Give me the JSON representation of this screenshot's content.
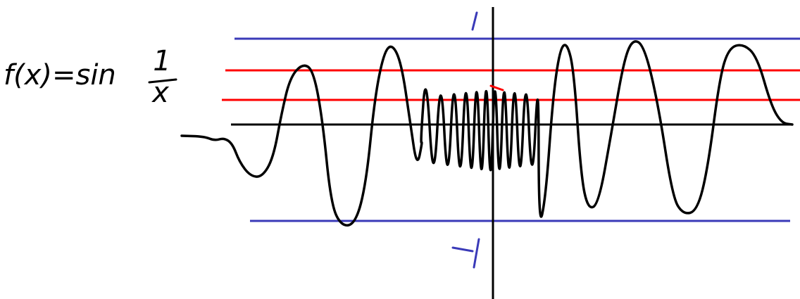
{
  "formula": {
    "lhs": "f(x)=sin",
    "numerator": "1",
    "denominator": "x"
  }
}
